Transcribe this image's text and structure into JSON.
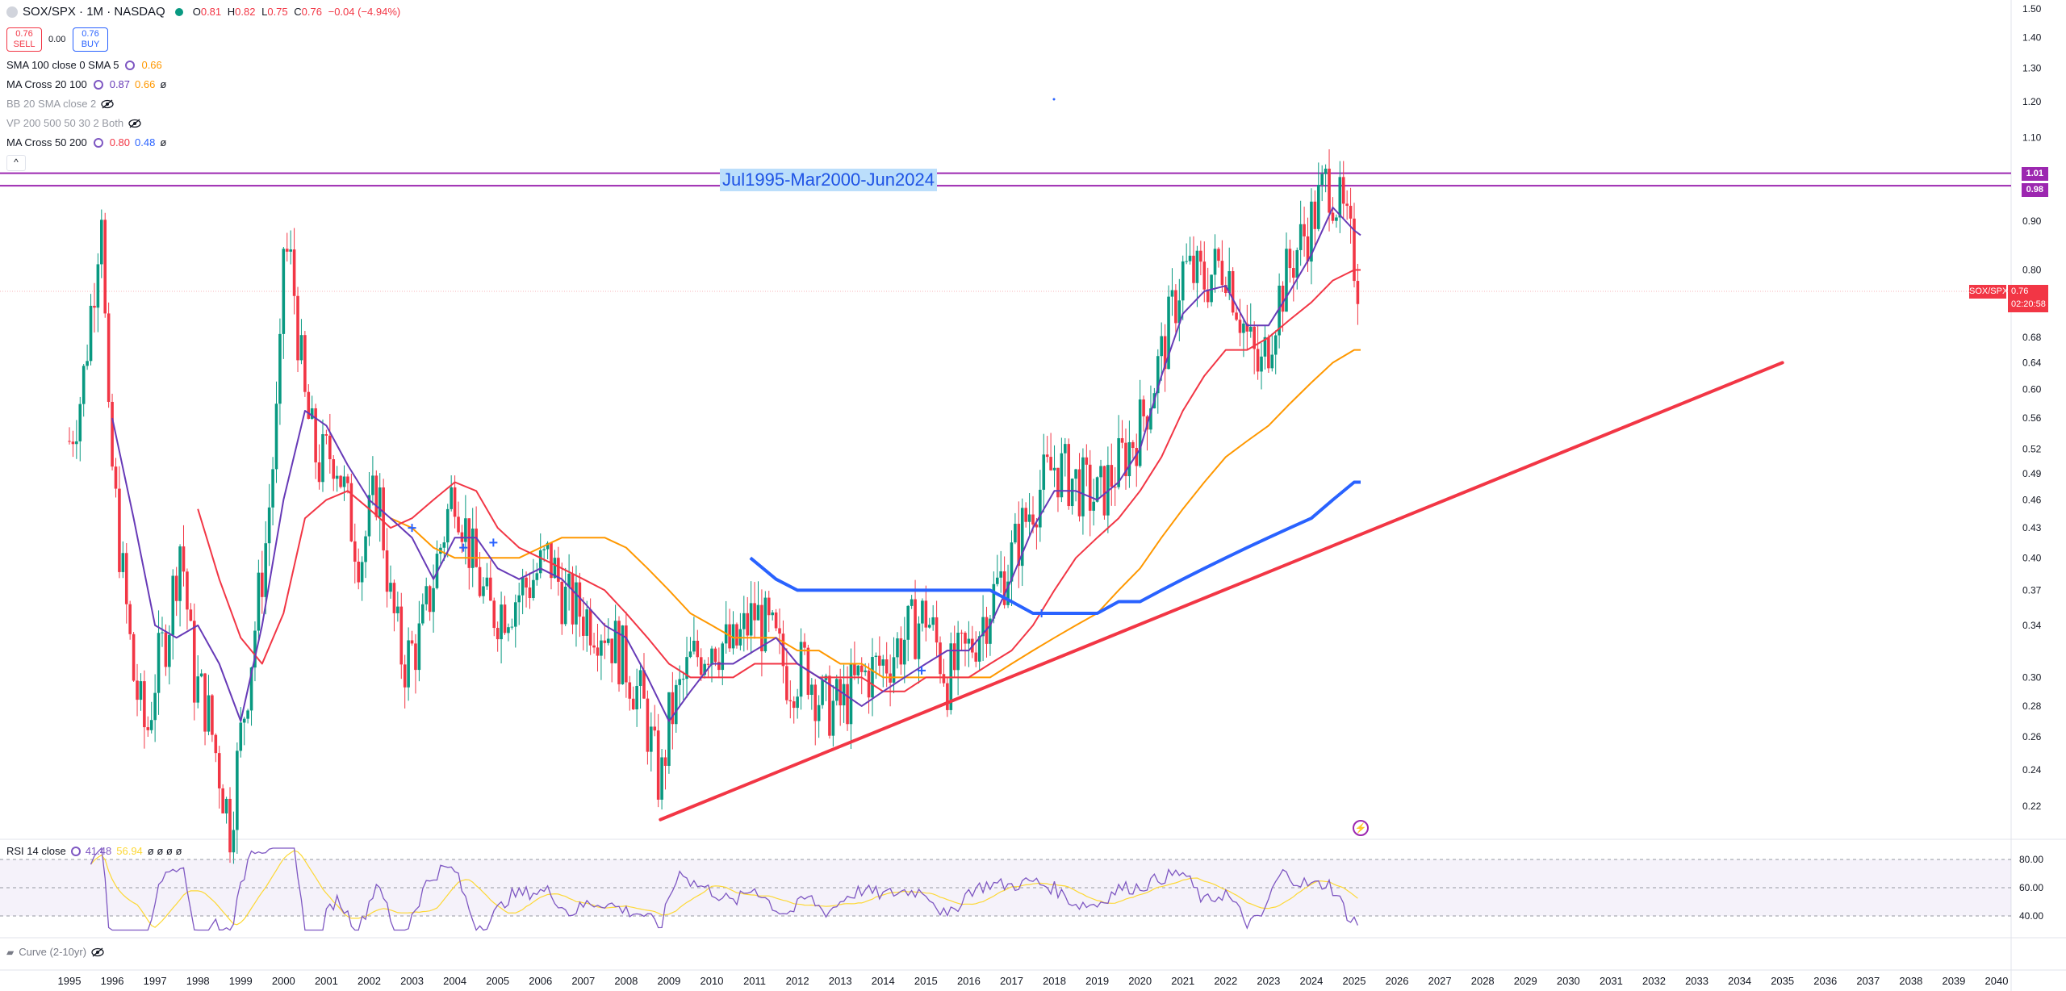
{
  "header": {
    "symbol_title": "SOX/SPX · 1M · NASDAQ",
    "ohlc": {
      "o_label": "O",
      "o": "0.81",
      "h_label": "H",
      "h": "0.82",
      "l_label": "L",
      "l": "0.75",
      "c_label": "C",
      "c": "0.76",
      "change": "−0.04 (−4.94%)"
    },
    "sell": {
      "price": "0.76",
      "label": "SELL"
    },
    "spread": "0.00",
    "buy": {
      "price": "0.76",
      "label": "BUY"
    }
  },
  "indicators": [
    {
      "name": "SMA 100 close 0 SMA 5",
      "values": [
        "0.66"
      ],
      "colors": [
        "#ff9800"
      ]
    },
    {
      "name": "MA Cross 20 100",
      "values": [
        "0.87",
        "0.66",
        "ø"
      ],
      "colors": [
        "#673ab7",
        "#ff9800",
        "#131722"
      ]
    },
    {
      "name": "BB 20 SMA close 2",
      "values": [],
      "colors": [],
      "hidden": true
    },
    {
      "name": "VP 200 500 50 30 2 Both",
      "values": [],
      "colors": [],
      "hidden": true
    },
    {
      "name": "MA Cross 50 200",
      "values": [
        "0.80",
        "0.48",
        "ø"
      ],
      "colors": [
        "#f23645",
        "#2962ff",
        "#131722"
      ]
    }
  ],
  "collapse_glyph": "^",
  "annotation": "Jul1995-Mar2000-Jun2024",
  "price_tags": {
    "level1": "1.01",
    "level2": "0.98",
    "symbol": "SOX/SPX",
    "current": "0.76",
    "countdown": "02:20:58"
  },
  "rsi_legend": {
    "name": "RSI 14 close",
    "value1": "41.48",
    "value2": "56.94",
    "extras": "ø ø ø ø"
  },
  "curve_legend": {
    "name": "Curve (2-10yr)"
  },
  "colors": {
    "up": "#089981",
    "down": "#f23645",
    "purple_line": "#9c27b0",
    "ma20": "#673ab7",
    "ma50": "#f23645",
    "ma100": "#ff9800",
    "ma200": "#2962ff",
    "trend": "#f23645",
    "rsi": "#7e57c2",
    "rsi_ma": "#fdd835"
  },
  "chart_data": {
    "type": "candlestick",
    "price_axis": {
      "ticks": [
        "1.50",
        "1.40",
        "1.30",
        "1.20",
        "1.10",
        "1.01",
        "0.98",
        "0.90",
        "0.80",
        "0.76",
        "0.68",
        "0.64",
        "0.60",
        "0.56",
        "0.52",
        "0.49",
        "0.46",
        "0.43",
        "0.40",
        "0.37",
        "0.34",
        "0.30",
        "0.28",
        "0.26",
        "0.24",
        "0.22"
      ],
      "log_scale": true
    },
    "time_axis": {
      "ticks": [
        "1995",
        "1996",
        "1997",
        "1998",
        "1999",
        "2000",
        "2001",
        "2002",
        "2003",
        "2004",
        "2005",
        "2006",
        "2007",
        "2008",
        "2009",
        "2010",
        "2011",
        "2012",
        "2013",
        "2014",
        "2015",
        "2016",
        "2017",
        "2018",
        "2019",
        "2020",
        "2021",
        "2022",
        "2023",
        "2024",
        "2025",
        "2026",
        "2027",
        "2028",
        "2029",
        "2030",
        "2031",
        "2032",
        "2033",
        "2034",
        "2035",
        "2036",
        "2037",
        "2038",
        "2039",
        "2040"
      ]
    },
    "horizontal_levels": [
      1.01,
      0.98
    ],
    "series_points": {
      "close": [
        [
          1995.0,
          0.53
        ],
        [
          1995.3,
          0.6
        ],
        [
          1995.6,
          0.8
        ],
        [
          1995.75,
          0.95
        ],
        [
          1995.9,
          0.55
        ],
        [
          1996.2,
          0.4
        ],
        [
          1996.5,
          0.3
        ],
        [
          1996.8,
          0.26
        ],
        [
          1997.0,
          0.3
        ],
        [
          1997.3,
          0.34
        ],
        [
          1997.6,
          0.42
        ],
        [
          1997.9,
          0.3
        ],
        [
          1998.2,
          0.28
        ],
        [
          1998.5,
          0.24
        ],
        [
          1998.75,
          0.21
        ],
        [
          1999.0,
          0.26
        ],
        [
          1999.3,
          0.33
        ],
        [
          1999.6,
          0.42
        ],
        [
          1999.9,
          0.6
        ],
        [
          2000.0,
          0.85
        ],
        [
          2000.2,
          0.8
        ],
        [
          2000.5,
          0.58
        ],
        [
          2000.8,
          0.5
        ],
        [
          2001.2,
          0.52
        ],
        [
          2001.5,
          0.45
        ],
        [
          2001.8,
          0.4
        ],
        [
          2002.2,
          0.48
        ],
        [
          2002.5,
          0.36
        ],
        [
          2002.8,
          0.31
        ],
        [
          2003.2,
          0.33
        ],
        [
          2003.6,
          0.4
        ],
        [
          2004.0,
          0.48
        ],
        [
          2004.4,
          0.4
        ],
        [
          2004.8,
          0.35
        ],
        [
          2005.3,
          0.36
        ],
        [
          2005.8,
          0.38
        ],
        [
          2006.2,
          0.4
        ],
        [
          2006.6,
          0.36
        ],
        [
          2007.0,
          0.35
        ],
        [
          2007.5,
          0.34
        ],
        [
          2008.0,
          0.31
        ],
        [
          2008.4,
          0.28
        ],
        [
          2008.8,
          0.23
        ],
        [
          2009.0,
          0.27
        ],
        [
          2009.5,
          0.31
        ],
        [
          2010.0,
          0.33
        ],
        [
          2010.5,
          0.32
        ],
        [
          2011.0,
          0.35
        ],
        [
          2011.4,
          0.33
        ],
        [
          2011.8,
          0.3
        ],
        [
          2012.2,
          0.31
        ],
        [
          2012.6,
          0.28
        ],
        [
          2013.0,
          0.28
        ],
        [
          2013.5,
          0.3
        ],
        [
          2014.0,
          0.31
        ],
        [
          2014.5,
          0.33
        ],
        [
          2015.0,
          0.35
        ],
        [
          2015.5,
          0.3
        ],
        [
          2016.0,
          0.32
        ],
        [
          2016.5,
          0.36
        ],
        [
          2017.0,
          0.4
        ],
        [
          2017.5,
          0.46
        ],
        [
          2018.0,
          0.5
        ],
        [
          2018.5,
          0.48
        ],
        [
          2019.0,
          0.46
        ],
        [
          2019.5,
          0.5
        ],
        [
          2020.0,
          0.55
        ],
        [
          2020.5,
          0.65
        ],
        [
          2021.0,
          0.8
        ],
        [
          2021.5,
          0.78
        ],
        [
          2022.0,
          0.82
        ],
        [
          2022.5,
          0.68
        ],
        [
          2022.8,
          0.62
        ],
        [
          2023.2,
          0.74
        ],
        [
          2023.6,
          0.83
        ],
        [
          2024.0,
          0.9
        ],
        [
          2024.4,
          1.0
        ],
        [
          2024.7,
          0.92
        ],
        [
          2025.0,
          0.82
        ],
        [
          2025.15,
          0.76
        ]
      ],
      "ma20": [
        [
          1996.0,
          0.56
        ],
        [
          1996.5,
          0.44
        ],
        [
          1997.0,
          0.34
        ],
        [
          1997.5,
          0.33
        ],
        [
          1998.0,
          0.34
        ],
        [
          1998.5,
          0.31
        ],
        [
          1999.0,
          0.27
        ],
        [
          1999.5,
          0.34
        ],
        [
          2000.0,
          0.46
        ],
        [
          2000.5,
          0.57
        ],
        [
          2001.0,
          0.55
        ],
        [
          2001.5,
          0.5
        ],
        [
          2002.0,
          0.46
        ],
        [
          2002.5,
          0.44
        ],
        [
          2003.0,
          0.42
        ],
        [
          2003.5,
          0.38
        ],
        [
          2004.0,
          0.42
        ],
        [
          2004.5,
          0.42
        ],
        [
          2005.0,
          0.39
        ],
        [
          2005.5,
          0.38
        ],
        [
          2006.0,
          0.39
        ],
        [
          2006.5,
          0.38
        ],
        [
          2007.0,
          0.36
        ],
        [
          2007.5,
          0.34
        ],
        [
          2008.0,
          0.33
        ],
        [
          2008.5,
          0.3
        ],
        [
          2009.0,
          0.27
        ],
        [
          2009.5,
          0.29
        ],
        [
          2010.0,
          0.31
        ],
        [
          2010.5,
          0.31
        ],
        [
          2011.0,
          0.32
        ],
        [
          2011.5,
          0.33
        ],
        [
          2012.0,
          0.31
        ],
        [
          2012.5,
          0.3
        ],
        [
          2013.0,
          0.29
        ],
        [
          2013.5,
          0.28
        ],
        [
          2014.0,
          0.29
        ],
        [
          2014.5,
          0.3
        ],
        [
          2015.0,
          0.31
        ],
        [
          2015.5,
          0.32
        ],
        [
          2016.0,
          0.32
        ],
        [
          2016.5,
          0.34
        ],
        [
          2017.0,
          0.38
        ],
        [
          2017.5,
          0.43
        ],
        [
          2018.0,
          0.47
        ],
        [
          2018.5,
          0.47
        ],
        [
          2019.0,
          0.46
        ],
        [
          2019.5,
          0.48
        ],
        [
          2020.0,
          0.52
        ],
        [
          2020.5,
          0.62
        ],
        [
          2021.0,
          0.72
        ],
        [
          2021.5,
          0.76
        ],
        [
          2022.0,
          0.77
        ],
        [
          2022.5,
          0.7
        ],
        [
          2023.0,
          0.7
        ],
        [
          2023.5,
          0.76
        ],
        [
          2024.0,
          0.83
        ],
        [
          2024.5,
          0.93
        ],
        [
          2025.0,
          0.88
        ],
        [
          2025.15,
          0.87
        ]
      ],
      "ma50": [
        [
          1998.0,
          0.45
        ],
        [
          1998.5,
          0.38
        ],
        [
          1999.0,
          0.33
        ],
        [
          1999.5,
          0.31
        ],
        [
          2000.0,
          0.35
        ],
        [
          2000.5,
          0.44
        ],
        [
          2001.0,
          0.46
        ],
        [
          2001.5,
          0.47
        ],
        [
          2002.0,
          0.45
        ],
        [
          2002.5,
          0.43
        ],
        [
          2003.0,
          0.44
        ],
        [
          2003.5,
          0.46
        ],
        [
          2004.0,
          0.48
        ],
        [
          2004.5,
          0.47
        ],
        [
          2005.0,
          0.43
        ],
        [
          2005.5,
          0.41
        ],
        [
          2006.0,
          0.4
        ],
        [
          2006.5,
          0.39
        ],
        [
          2007.0,
          0.38
        ],
        [
          2007.5,
          0.37
        ],
        [
          2008.0,
          0.35
        ],
        [
          2008.5,
          0.33
        ],
        [
          2009.0,
          0.31
        ],
        [
          2009.5,
          0.3
        ],
        [
          2010.0,
          0.3
        ],
        [
          2010.5,
          0.3
        ],
        [
          2011.0,
          0.31
        ],
        [
          2011.5,
          0.31
        ],
        [
          2012.0,
          0.31
        ],
        [
          2012.5,
          0.3
        ],
        [
          2013.0,
          0.3
        ],
        [
          2013.5,
          0.3
        ],
        [
          2014.0,
          0.29
        ],
        [
          2014.5,
          0.29
        ],
        [
          2015.0,
          0.3
        ],
        [
          2015.5,
          0.3
        ],
        [
          2016.0,
          0.3
        ],
        [
          2016.5,
          0.31
        ],
        [
          2017.0,
          0.32
        ],
        [
          2017.5,
          0.34
        ],
        [
          2018.0,
          0.37
        ],
        [
          2018.5,
          0.4
        ],
        [
          2019.0,
          0.42
        ],
        [
          2019.5,
          0.44
        ],
        [
          2020.0,
          0.47
        ],
        [
          2020.5,
          0.51
        ],
        [
          2021.0,
          0.57
        ],
        [
          2021.5,
          0.62
        ],
        [
          2022.0,
          0.66
        ],
        [
          2022.5,
          0.66
        ],
        [
          2023.0,
          0.68
        ],
        [
          2023.5,
          0.71
        ],
        [
          2024.0,
          0.74
        ],
        [
          2024.5,
          0.78
        ],
        [
          2025.0,
          0.8
        ],
        [
          2025.15,
          0.8
        ]
      ],
      "ma100": [
        [
          2002.5,
          0.44
        ],
        [
          2003.0,
          0.43
        ],
        [
          2003.5,
          0.41
        ],
        [
          2004.0,
          0.4
        ],
        [
          2004.5,
          0.4
        ],
        [
          2005.0,
          0.4
        ],
        [
          2005.5,
          0.4
        ],
        [
          2006.0,
          0.41
        ],
        [
          2006.5,
          0.42
        ],
        [
          2007.0,
          0.42
        ],
        [
          2007.5,
          0.42
        ],
        [
          2008.0,
          0.41
        ],
        [
          2008.5,
          0.39
        ],
        [
          2009.0,
          0.37
        ],
        [
          2009.5,
          0.35
        ],
        [
          2010.0,
          0.34
        ],
        [
          2010.5,
          0.33
        ],
        [
          2011.0,
          0.33
        ],
        [
          2011.5,
          0.33
        ],
        [
          2012.0,
          0.32
        ],
        [
          2012.5,
          0.32
        ],
        [
          2013.0,
          0.31
        ],
        [
          2013.5,
          0.31
        ],
        [
          2014.0,
          0.3
        ],
        [
          2014.5,
          0.3
        ],
        [
          2015.0,
          0.3
        ],
        [
          2015.5,
          0.3
        ],
        [
          2016.0,
          0.3
        ],
        [
          2016.5,
          0.3
        ],
        [
          2017.0,
          0.31
        ],
        [
          2017.5,
          0.32
        ],
        [
          2018.0,
          0.33
        ],
        [
          2018.5,
          0.34
        ],
        [
          2019.0,
          0.35
        ],
        [
          2019.5,
          0.37
        ],
        [
          2020.0,
          0.39
        ],
        [
          2020.5,
          0.42
        ],
        [
          2021.0,
          0.45
        ],
        [
          2021.5,
          0.48
        ],
        [
          2022.0,
          0.51
        ],
        [
          2022.5,
          0.53
        ],
        [
          2023.0,
          0.55
        ],
        [
          2023.5,
          0.58
        ],
        [
          2024.0,
          0.61
        ],
        [
          2024.5,
          0.64
        ],
        [
          2025.0,
          0.66
        ],
        [
          2025.15,
          0.66
        ]
      ],
      "ma200": [
        [
          2010.9,
          0.4
        ],
        [
          2011.5,
          0.38
        ],
        [
          2012.0,
          0.37
        ],
        [
          2012.5,
          0.37
        ],
        [
          2013.0,
          0.37
        ],
        [
          2013.5,
          0.37
        ],
        [
          2014.0,
          0.37
        ],
        [
          2014.5,
          0.37
        ],
        [
          2015.0,
          0.37
        ],
        [
          2015.5,
          0.37
        ],
        [
          2016.0,
          0.37
        ],
        [
          2016.5,
          0.37
        ],
        [
          2017.0,
          0.36
        ],
        [
          2017.5,
          0.35
        ],
        [
          2018.0,
          0.35
        ],
        [
          2018.5,
          0.35
        ],
        [
          2019.0,
          0.35
        ],
        [
          2019.5,
          0.36
        ],
        [
          2020.0,
          0.36
        ],
        [
          2020.5,
          0.37
        ],
        [
          2021.0,
          0.38
        ],
        [
          2021.5,
          0.39
        ],
        [
          2022.0,
          0.4
        ],
        [
          2022.5,
          0.41
        ],
        [
          2023.0,
          0.42
        ],
        [
          2023.5,
          0.43
        ],
        [
          2024.0,
          0.44
        ],
        [
          2024.5,
          0.46
        ],
        [
          2025.0,
          0.48
        ],
        [
          2025.15,
          0.48
        ]
      ],
      "trendline": [
        [
          2008.8,
          0.213
        ],
        [
          2035.0,
          0.64
        ]
      ]
    },
    "rsi": {
      "levels": [
        "80.00",
        "60.00",
        "40.00"
      ],
      "band": [
        40,
        80
      ]
    }
  }
}
